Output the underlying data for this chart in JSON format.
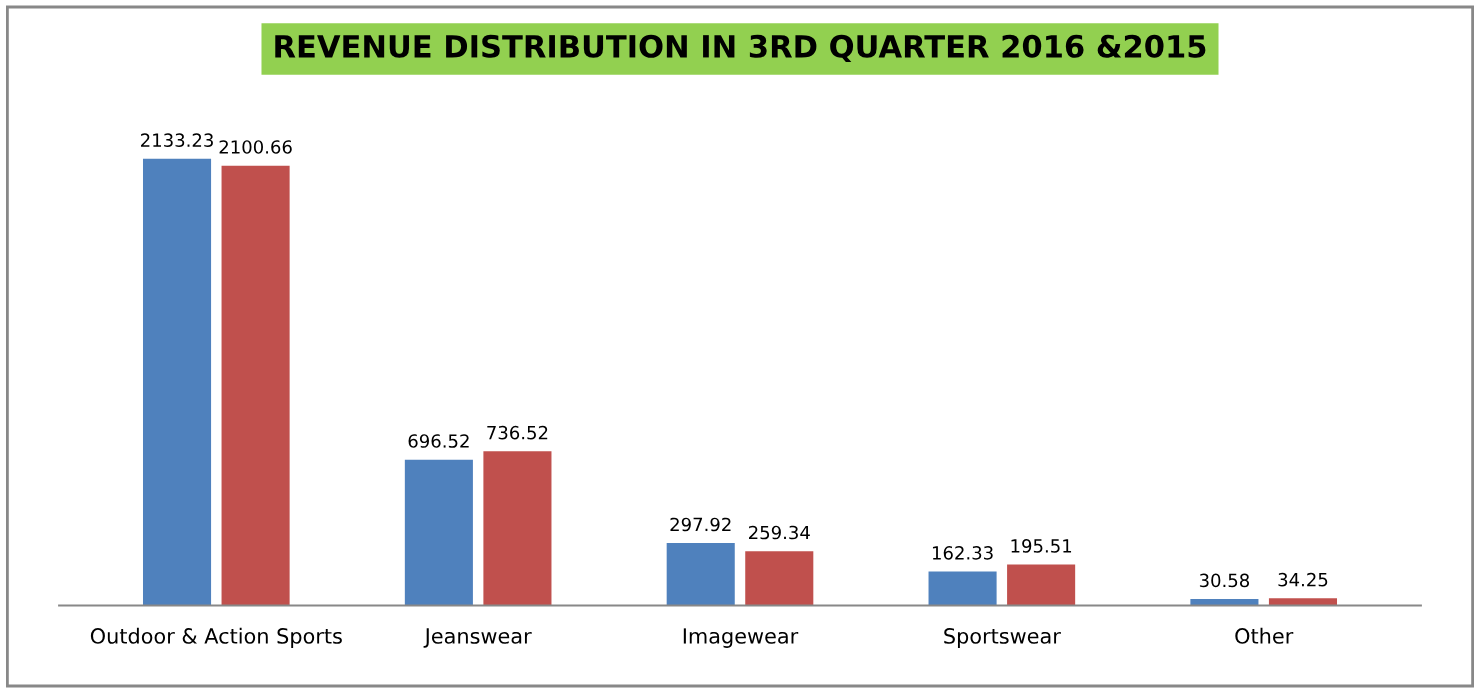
{
  "chart_data": {
    "type": "bar",
    "title": "REVENUE DISTRIBUTION IN 3RD QUARTER 2016 &2015",
    "categories": [
      "Outdoor & Action Sports",
      "Jeanswear",
      "Imagewear",
      "Sportswear",
      "Other"
    ],
    "series": [
      {
        "color": "#4f81bd",
        "values": [
          2133.23,
          696.52,
          297.92,
          162.33,
          30.58
        ]
      },
      {
        "color": "#c0504d",
        "values": [
          2100.66,
          736.52,
          259.34,
          195.51,
          34.25
        ]
      }
    ],
    "data_labels": true,
    "grid": false
  }
}
